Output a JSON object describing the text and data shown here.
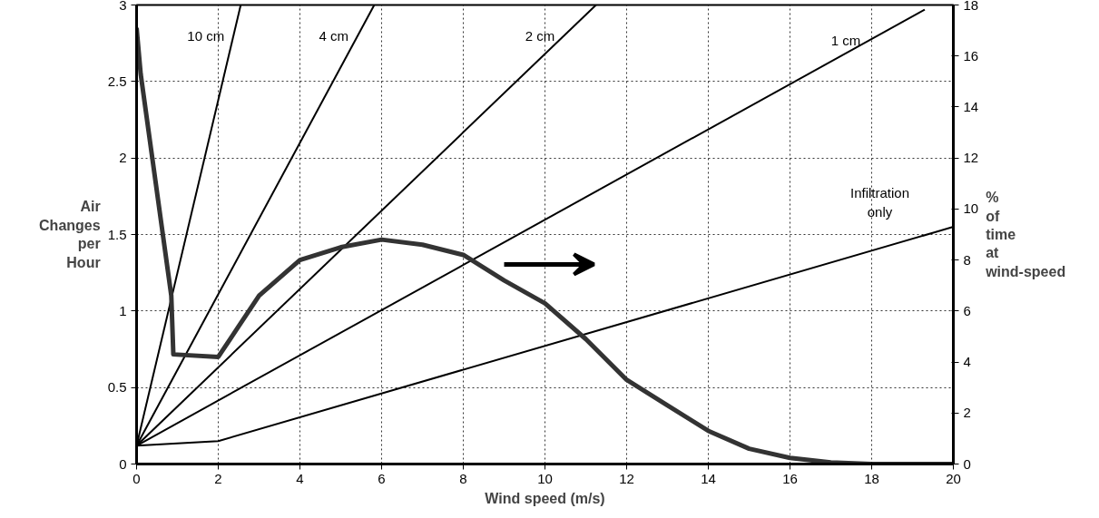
{
  "chart_data": {
    "type": "line",
    "xlabel": "Wind speed (m/s)",
    "ylabel": "Air Changes per Hour",
    "y2label": "% of time at wind-speed",
    "xlim": [
      0,
      20
    ],
    "xticks": [
      0,
      2,
      4,
      6,
      8,
      10,
      12,
      14,
      16,
      18,
      20
    ],
    "ylim": [
      0,
      3
    ],
    "yticks": [
      0,
      0.5,
      1,
      1.5,
      2,
      2.5,
      3
    ],
    "y2lim": [
      0,
      18
    ],
    "y2ticks": [
      0,
      2,
      4,
      6,
      8,
      10,
      12,
      14,
      16,
      18
    ],
    "grid": true,
    "line_style": "solid",
    "series": [
      {
        "name": "10 cm",
        "color": "#000000",
        "x": [
          0,
          2.55
        ],
        "values": [
          0.12,
          3
        ]
      },
      {
        "name": "4 cm",
        "color": "#000000",
        "x": [
          0,
          5.82
        ],
        "values": [
          0.12,
          3
        ]
      },
      {
        "name": "2 cm",
        "color": "#000000",
        "x": [
          0,
          11.25
        ],
        "values": [
          0.12,
          3
        ]
      },
      {
        "name": "1 cm",
        "color": "#000000",
        "x": [
          0,
          19.3
        ],
        "values": [
          0.12,
          2.97
        ]
      },
      {
        "name": "Infiltration only",
        "color": "#000000",
        "x": [
          0,
          2,
          20
        ],
        "values": [
          0.12,
          0.15,
          1.55
        ]
      },
      {
        "color": "#333333",
        "axis": "y2",
        "x": [
          0,
          0.1,
          0.85,
          0.9,
          2,
          2.5,
          3,
          4,
          5,
          6,
          7,
          8,
          9,
          10,
          11,
          12,
          13,
          14,
          15,
          16,
          17,
          18,
          19,
          20
        ],
        "values": [
          17.1,
          15.3,
          6.6,
          4.3,
          4.2,
          5.4,
          6.6,
          8,
          8.5,
          8.8,
          8.6,
          8.2,
          7.2,
          6.3,
          4.9,
          3.3,
          2.3,
          1.3,
          0.6,
          0.24,
          0.06,
          0,
          0,
          0
        ]
      }
    ]
  }
}
